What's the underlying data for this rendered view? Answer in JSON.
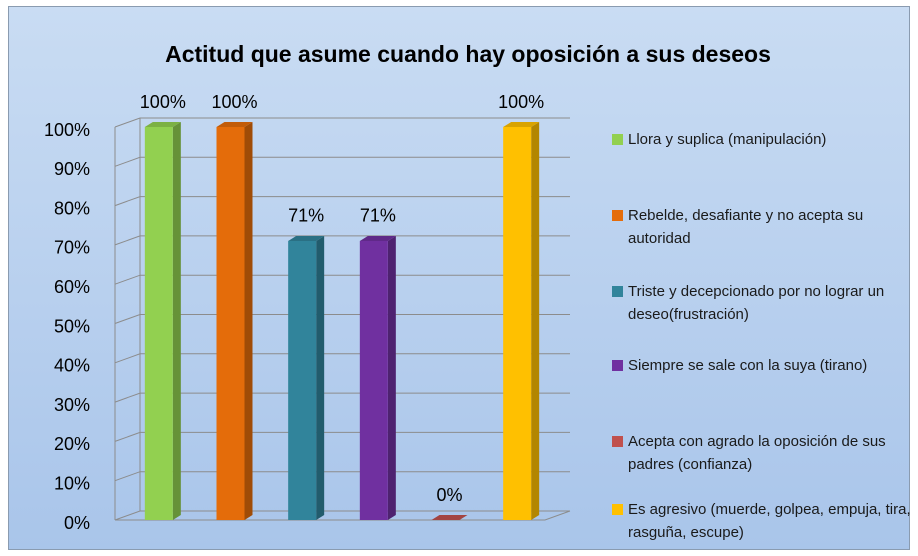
{
  "chart_data": {
    "type": "bar3d",
    "title": "Actitud que asume cuando hay oposición a sus deseos",
    "categories": [
      null
    ],
    "series": [
      {
        "name": "Llora y suplica (manipulación)",
        "color": "#92d050",
        "values": [
          100
        ],
        "value_labels": [
          "100%"
        ]
      },
      {
        "name": "Rebelde, desafiante y no acepta su autoridad",
        "color": "#e46c0a",
        "values": [
          100
        ],
        "value_labels": [
          "100%"
        ]
      },
      {
        "name": "Triste y decepcionado por no lograr un deseo(frustración)",
        "color": "#31849b",
        "values": [
          71
        ],
        "value_labels": [
          "71%"
        ]
      },
      {
        "name": "Siempre se sale con la suya (tirano)",
        "color": "#7030a0",
        "values": [
          71
        ],
        "value_labels": [
          "71%"
        ]
      },
      {
        "name": "Acepta  con agrado la oposición de sus padres  (confianza)",
        "color": "#c0504d",
        "values": [
          0
        ],
        "value_labels": [
          "0%"
        ]
      },
      {
        "name": "Es agresivo (muerde, golpea, empuja, tira, rasguña, escupe)",
        "color": "#ffc000",
        "values": [
          100
        ],
        "value_labels": [
          "100%"
        ]
      }
    ],
    "ylim": [
      0,
      100
    ],
    "yticks": [
      {
        "value": 0,
        "label": "0%"
      },
      {
        "value": 10,
        "label": "10%"
      },
      {
        "value": 20,
        "label": "20%"
      },
      {
        "value": 30,
        "label": "30%"
      },
      {
        "value": 40,
        "label": "40%"
      },
      {
        "value": 50,
        "label": "50%"
      },
      {
        "value": 60,
        "label": "60%"
      },
      {
        "value": 70,
        "label": "70%"
      },
      {
        "value": 80,
        "label": "80%"
      },
      {
        "value": 90,
        "label": "90%"
      },
      {
        "value": 100,
        "label": "100%"
      }
    ],
    "grid": true,
    "legend": "right"
  }
}
